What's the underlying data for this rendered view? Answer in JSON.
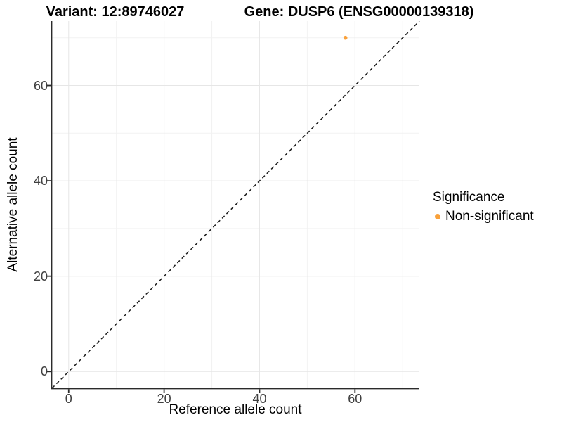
{
  "header": {
    "variant_title": "Variant: 12:89746027",
    "gene_title": "Gene: DUSP6 (ENSG00000139318)"
  },
  "chart_data": {
    "type": "scatter",
    "xlabel": "Reference allele count",
    "ylabel": "Alternative allele count",
    "xlim": [
      -3.5,
      73.5
    ],
    "ylim": [
      -3.5,
      73.5
    ],
    "x_major_ticks": [
      0,
      20,
      40,
      60
    ],
    "y_major_ticks": [
      0,
      20,
      40,
      60
    ],
    "x_minor_ticks": [
      10,
      30,
      50,
      70
    ],
    "y_minor_ticks": [
      10,
      30,
      50,
      70
    ],
    "grid": true,
    "series": [
      {
        "name": "Non-significant",
        "color": "#F9A13B",
        "point_radius": 2.8,
        "points": [
          {
            "x": 58,
            "y": 70
          }
        ]
      }
    ],
    "reference_line": {
      "type": "identity",
      "slope": 1,
      "intercept": 0,
      "style": "dashed",
      "color": "#1A1A1A"
    },
    "legend": {
      "title": "Significance",
      "position": "right",
      "entries": [
        {
          "label": "Non-significant",
          "color": "#F9A13B"
        }
      ]
    }
  }
}
